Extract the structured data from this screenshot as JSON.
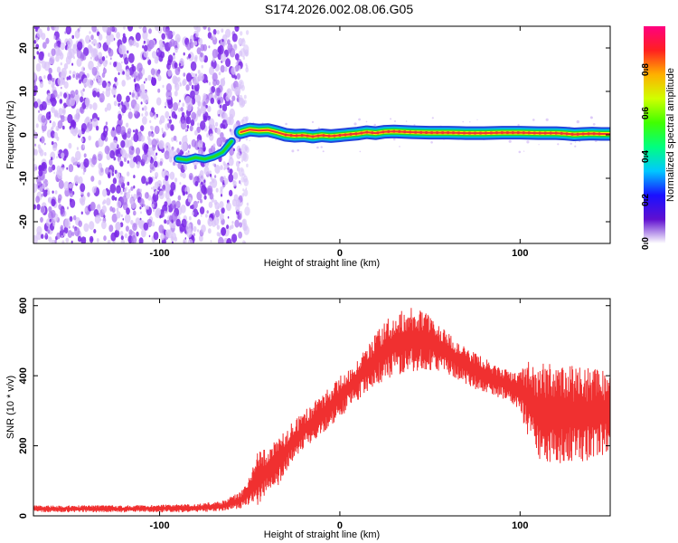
{
  "title": "S174.2026.002.08.06.G05",
  "colors": {
    "snr_line": "#f03030",
    "track_core": "#ee3333",
    "track_mid": "#ffee00",
    "track_outer": "#22dd22",
    "track_edge": "#00bbdd",
    "track_rim": "#2244dd",
    "noise_dark": "#7a28e6",
    "noise_mid": "#a66ef0",
    "noise_light": "#d9c4f8",
    "colormap": [
      "#ffffff",
      "#6010d0",
      "#1a10ff",
      "#00c8ff",
      "#00ff80",
      "#40ff00",
      "#d0ff00",
      "#ffb000",
      "#ff2020",
      "#ff0080"
    ]
  },
  "chart_data": [
    {
      "type": "heatmap",
      "name": "spectrogram",
      "xlabel": "Height of straight line (km)",
      "ylabel": "Frequency (Hz)",
      "xlim": [
        -170,
        150
      ],
      "ylim": [
        -25,
        25
      ],
      "xticks": [
        {
          "value": -100,
          "label": "-100"
        },
        {
          "value": 0,
          "label": "0"
        },
        {
          "value": 100,
          "label": "100"
        }
      ],
      "yticks": [
        {
          "value": -20,
          "label": "-20"
        },
        {
          "value": -10,
          "label": "-10"
        },
        {
          "value": 0,
          "label": "0"
        },
        {
          "value": 10,
          "label": "10"
        },
        {
          "value": 20,
          "label": "20"
        }
      ],
      "noise_region_x": [
        -170,
        -55
      ],
      "track": {
        "x": [
          -55,
          -50,
          -45,
          -40,
          -35,
          -30,
          -25,
          -20,
          -15,
          -10,
          -5,
          0,
          5,
          10,
          15,
          20,
          25,
          30,
          40,
          50,
          60,
          70,
          80,
          90,
          100,
          110,
          120,
          125,
          130,
          135,
          140,
          145,
          150
        ],
        "freq": [
          0.6,
          1.2,
          1.0,
          1.1,
          0.6,
          0.0,
          -0.2,
          -0.1,
          -0.4,
          -0.1,
          -0.3,
          -0.1,
          0.1,
          0.3,
          0.6,
          0.4,
          0.7,
          0.8,
          0.6,
          0.5,
          0.5,
          0.4,
          0.4,
          0.5,
          0.5,
          0.4,
          0.4,
          0.3,
          0.1,
          0.2,
          0.3,
          0.2,
          0.2
        ]
      },
      "pre_track": {
        "x": [
          -90,
          -85,
          -80,
          -75,
          -70,
          -65,
          -60
        ],
        "freq": [
          -5.5,
          -5.8,
          -5.2,
          -5.6,
          -5.0,
          -4.0,
          -1.5
        ]
      },
      "colorbar": {
        "label": "Normalized spectral amplitude",
        "range": [
          0,
          1
        ],
        "ticks": [
          {
            "value": 0.0,
            "label": "0.0"
          },
          {
            "value": 0.2,
            "label": "0.2"
          },
          {
            "value": 0.4,
            "label": "0.4"
          },
          {
            "value": 0.6,
            "label": "0.6"
          },
          {
            "value": 0.8,
            "label": "0.8"
          }
        ]
      }
    },
    {
      "type": "line",
      "name": "snr",
      "xlabel": "Height of straight line (km)",
      "ylabel": "SNR (10 * v/v)",
      "xlim": [
        -170,
        150
      ],
      "ylim": [
        0,
        620
      ],
      "xticks": [
        {
          "value": -100,
          "label": "-100"
        },
        {
          "value": 0,
          "label": "0"
        },
        {
          "value": 100,
          "label": "100"
        }
      ],
      "yticks": [
        {
          "value": 0,
          "label": "0"
        },
        {
          "value": 200,
          "label": "200"
        },
        {
          "value": 400,
          "label": "400"
        },
        {
          "value": 600,
          "label": "600"
        }
      ],
      "envelope": {
        "x": [
          -170,
          -120,
          -80,
          -65,
          -55,
          -50,
          -45,
          -40,
          -35,
          -30,
          -25,
          -20,
          -10,
          0,
          10,
          15,
          20,
          25,
          30,
          35,
          40,
          45,
          50,
          55,
          60,
          70,
          80,
          90,
          95,
          100,
          105,
          110,
          120,
          130,
          140,
          150
        ],
        "mean": [
          20,
          20,
          22,
          28,
          45,
          70,
          110,
          130,
          150,
          185,
          215,
          245,
          290,
          340,
          390,
          420,
          450,
          470,
          490,
          500,
          505,
          500,
          495,
          480,
          465,
          430,
          400,
          380,
          370,
          355,
          330,
          300,
          290,
          290,
          290,
          300
        ],
        "amp": [
          10,
          10,
          12,
          15,
          25,
          45,
          80,
          60,
          70,
          60,
          60,
          55,
          55,
          60,
          60,
          65,
          75,
          85,
          90,
          95,
          95,
          90,
          80,
          70,
          60,
          55,
          50,
          45,
          45,
          60,
          120,
          140,
          140,
          140,
          130,
          120
        ]
      }
    }
  ]
}
